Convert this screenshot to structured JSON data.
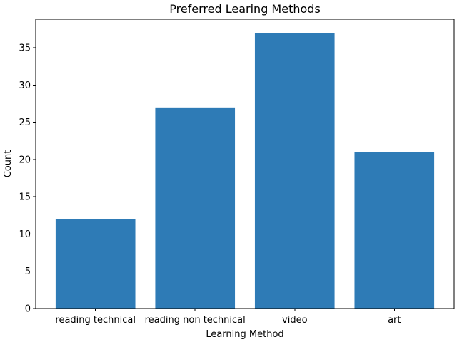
{
  "chart_data": {
    "type": "bar",
    "title": "Preferred Learing Methods",
    "xlabel": "Learning Method",
    "ylabel": "Count",
    "categories": [
      "reading technical",
      "reading non technical",
      "video",
      "art"
    ],
    "values": [
      12,
      27,
      37,
      21
    ],
    "ylim": [
      0,
      38.85
    ],
    "yticks": [
      0,
      5,
      10,
      15,
      20,
      25,
      30,
      35
    ],
    "bar_color": "#2e7bb6",
    "grid": false,
    "legend": "none"
  }
}
